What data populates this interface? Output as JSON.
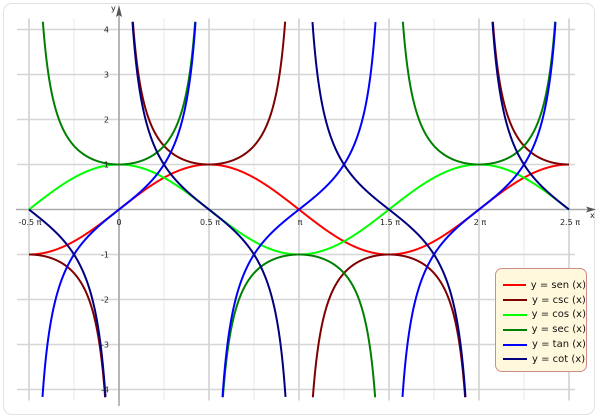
{
  "chart_data": {
    "type": "line",
    "xlabel": "x",
    "ylabel": "y",
    "xlim": [
      -1.5708,
      7.854
    ],
    "ylim": [
      -4.2,
      4.2
    ],
    "grid": true,
    "legend_position": "bottom-right",
    "x_ticks": [
      {
        "value": -1.5708,
        "label": "-0.5 π"
      },
      {
        "value": 0,
        "label": "0"
      },
      {
        "value": 1.5708,
        "label": "0.5 π"
      },
      {
        "value": 3.1416,
        "label": "π"
      },
      {
        "value": 4.7124,
        "label": "1.5 π"
      },
      {
        "value": 6.2832,
        "label": "2 π"
      },
      {
        "value": 7.854,
        "label": "2.5 π"
      }
    ],
    "y_ticks": [
      {
        "value": 4,
        "label": "4"
      },
      {
        "value": 3,
        "label": "3"
      },
      {
        "value": 2,
        "label": "2"
      },
      {
        "value": 1,
        "label": "1"
      },
      {
        "value": -1,
        "label": "-1"
      },
      {
        "value": -2,
        "label": "-2"
      },
      {
        "value": -3,
        "label": "-3"
      },
      {
        "value": -4,
        "label": "-4"
      }
    ],
    "series": [
      {
        "name": "y = sen (x)",
        "function": "sin",
        "color": "#ff0000"
      },
      {
        "name": "y = csc (x)",
        "function": "csc",
        "color": "#800000"
      },
      {
        "name": "y = cos (x)",
        "function": "cos",
        "color": "#00ff00"
      },
      {
        "name": "y = sec (x)",
        "function": "sec",
        "color": "#008000"
      },
      {
        "name": "y = tan (x)",
        "function": "tan",
        "color": "#0000ff"
      },
      {
        "name": "y = cot (x)",
        "function": "cot",
        "color": "#000080"
      }
    ]
  }
}
